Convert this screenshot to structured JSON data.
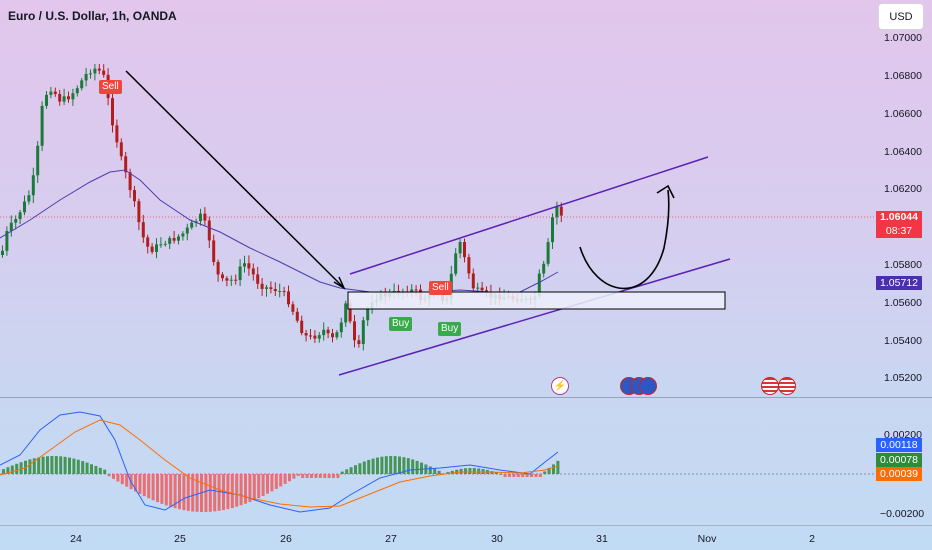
{
  "header": {
    "symbol_title": "Euro / U.S. Dollar, 1h, OANDA",
    "currency_button": "USD"
  },
  "price_axis": {
    "ticks": [
      "1.07000",
      "1.06800",
      "1.06600",
      "1.06400",
      "1.06200",
      "1.05800",
      "1.05600",
      "1.05400",
      "1.05200"
    ]
  },
  "macd_axis": {
    "ticks": [
      "0.00200",
      "−0.00200"
    ]
  },
  "price_labels": {
    "last_price": "1.06044",
    "countdown": "08:37",
    "ma_value": "1.05712"
  },
  "macd_labels": {
    "macd": "0.00118",
    "signal": "0.00078",
    "histogram": "0.00039"
  },
  "time_axis": {
    "labels": [
      "24",
      "25",
      "26",
      "27",
      "30",
      "31",
      "Nov",
      "2"
    ]
  },
  "signals": {
    "sell_1": "Sell",
    "sell_2": "Sell",
    "buy_1": "Buy",
    "buy_2": "Buy"
  },
  "colors": {
    "bull": "#26a69a",
    "bull_dark": "#1b7a3a",
    "bear": "#b11d1d",
    "ma": "#4b3db0",
    "channel": "#5b21b6",
    "last_price_bg": "#f23645",
    "ma_label_bg": "#4a2fb0",
    "macd_line": "#2962ff",
    "signal_line": "#ff6d00",
    "hist_pos": "#2e8b3a",
    "hist_neg": "#f05a5a"
  },
  "events": {
    "lightning_icon": "lightning-icon",
    "flag_icon": "flag-icon"
  },
  "chart_data": {
    "type": "candlestick",
    "title": "Euro / U.S. Dollar, 1h, OANDA",
    "price_range": [
      1.051,
      1.0715
    ],
    "channel_upper": [
      [
        1.0581,
        "27 open"
      ],
      [
        1.0637,
        "30 end"
      ]
    ],
    "channel_lower": [
      [
        1.0522,
        "26 end"
      ],
      [
        1.0582,
        "31 end"
      ]
    ],
    "demand_zone": [
      1.0555,
      1.0565
    ],
    "last_price": 1.06044,
    "macd": {
      "macd": 0.00118,
      "signal": 0.00078,
      "histogram": 0.00039,
      "range": [
        -0.0025,
        0.0025
      ]
    }
  }
}
